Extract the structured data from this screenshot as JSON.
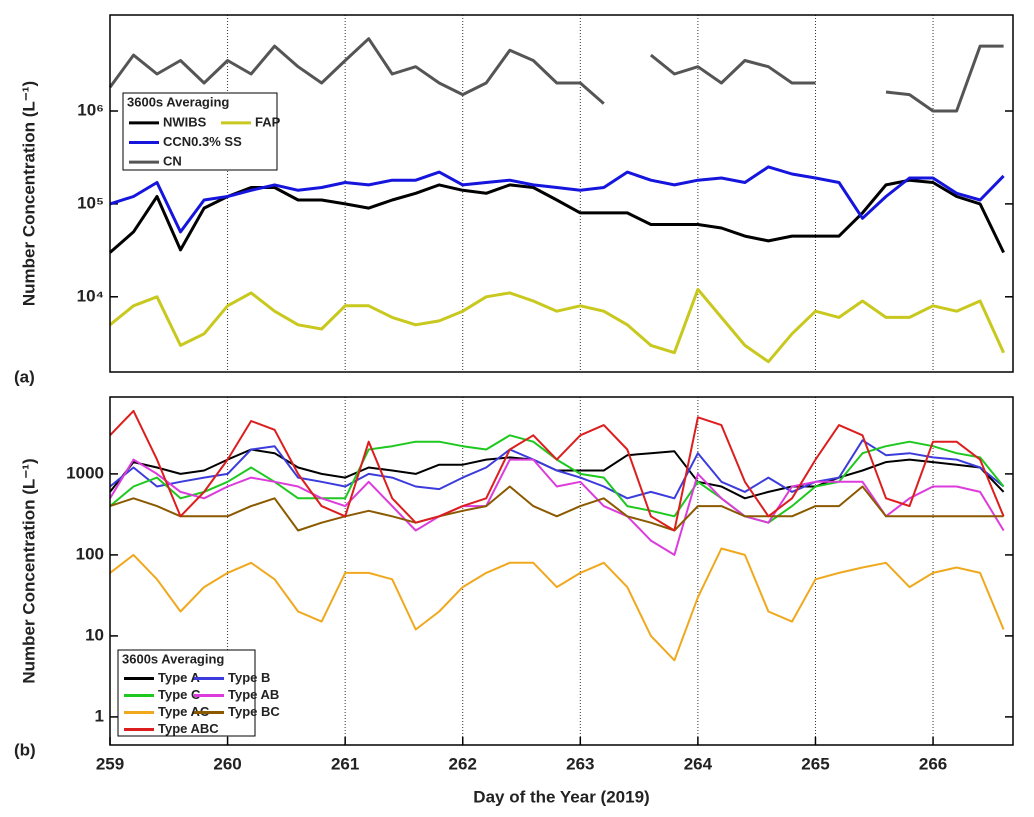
{
  "chart_data": [
    {
      "type": "line",
      "panel_label": "(a)",
      "y_label": "Number Concentration (L⁻¹)",
      "legend_title": "3600s Averaging",
      "log_scale": true,
      "xlim": [
        259,
        266.68
      ],
      "ylim": [
        1550,
        10800000
      ],
      "yticks": [
        {
          "value": 10000,
          "label": "10⁴"
        },
        {
          "value": 100000,
          "label": "10⁵"
        },
        {
          "value": 1000000,
          "label": "10⁶"
        }
      ],
      "x": [
        259.0,
        259.2,
        259.4,
        259.6,
        259.8,
        260.0,
        260.2,
        260.4,
        260.6,
        260.8,
        261.0,
        261.2,
        261.4,
        261.6,
        261.8,
        262.0,
        262.2,
        262.4,
        262.6,
        262.8,
        263.0,
        263.2,
        263.4,
        263.6,
        263.8,
        264.0,
        264.2,
        264.4,
        264.6,
        264.8,
        265.0,
        265.2,
        265.4,
        265.6,
        265.8,
        266.0,
        266.2,
        266.4,
        266.6
      ],
      "series": [
        {
          "name": "NWIBS",
          "color": "#000000",
          "values": [
            30000,
            50000,
            120000,
            32000,
            90000,
            120000,
            150000,
            150000,
            110000,
            110000,
            100000,
            90000,
            110000,
            130000,
            160000,
            140000,
            130000,
            160000,
            150000,
            110000,
            80000,
            80000,
            80000,
            60000,
            60000,
            60000,
            55000,
            45000,
            40000,
            45000,
            45000,
            45000,
            80000,
            160000,
            180000,
            170000,
            120000,
            100000,
            30000
          ]
        },
        {
          "name": "FAP",
          "color": "#c8c81e",
          "values": [
            5000,
            8000,
            10000,
            3000,
            4000,
            8000,
            11000,
            7000,
            5000,
            4500,
            8000,
            8000,
            6000,
            5000,
            5500,
            7000,
            10000,
            11000,
            9000,
            7000,
            8000,
            7000,
            5000,
            3000,
            2500,
            12000,
            6000,
            3000,
            2000,
            4000,
            7000,
            6000,
            9000,
            6000,
            6000,
            8000,
            7000,
            9000,
            2500
          ]
        },
        {
          "name": "CCN0.3% SS",
          "color": "#1515dd",
          "values": [
            100000,
            120000,
            170000,
            50000,
            110000,
            120000,
            140000,
            160000,
            140000,
            150000,
            170000,
            160000,
            180000,
            180000,
            220000,
            160000,
            170000,
            180000,
            160000,
            150000,
            140000,
            150000,
            220000,
            180000,
            160000,
            180000,
            190000,
            170000,
            250000,
            210000,
            190000,
            170000,
            70000,
            120000,
            190000,
            190000,
            130000,
            110000,
            200000
          ]
        },
        {
          "name": "CN",
          "color": "#555555",
          "values": [
            1800000,
            4000000,
            2500000,
            3500000,
            2000000,
            3500000,
            2500000,
            5000000,
            3000000,
            2000000,
            3500000,
            6000000,
            2500000,
            3000000,
            2000000,
            1500000,
            2000000,
            4500000,
            3500000,
            2000000,
            2000000,
            1200000,
            null,
            4000000,
            2500000,
            3000000,
            2000000,
            3500000,
            3000000,
            2000000,
            2000000,
            null,
            null,
            1600000,
            1500000,
            1000000,
            1000000,
            5000000,
            5000000
          ]
        }
      ]
    },
    {
      "type": "line",
      "panel_label": "(b)",
      "y_label": "Number Concentration (L⁻¹)",
      "x_label": "Day of the Year (2019)",
      "legend_title": "3600s Averaging",
      "log_scale": true,
      "xlim": [
        259,
        266.68
      ],
      "ylim": [
        0.45,
        8900
      ],
      "xticks": [
        259,
        260,
        261,
        262,
        263,
        264,
        265,
        266
      ],
      "yticks": [
        1,
        10,
        100,
        1000
      ],
      "x": [
        259.0,
        259.2,
        259.4,
        259.6,
        259.8,
        260.0,
        260.2,
        260.4,
        260.6,
        260.8,
        261.0,
        261.2,
        261.4,
        261.6,
        261.8,
        262.0,
        262.2,
        262.4,
        262.6,
        262.8,
        263.0,
        263.2,
        263.4,
        263.6,
        263.8,
        264.0,
        264.2,
        264.4,
        264.6,
        264.8,
        265.0,
        265.2,
        265.4,
        265.6,
        265.8,
        266.0,
        266.2,
        266.4,
        266.6
      ],
      "series": [
        {
          "name": "Type A",
          "color": "#000000",
          "values": [
            600,
            1400,
            1200,
            1000,
            1100,
            1500,
            2000,
            1800,
            1200,
            1000,
            900,
            1200,
            1100,
            1000,
            1300,
            1300,
            1500,
            1600,
            1500,
            1100,
            1100,
            1100,
            1700,
            1800,
            1900,
            800,
            700,
            500,
            600,
            700,
            700,
            900,
            1100,
            1400,
            1500,
            1400,
            1300,
            1200,
            600
          ]
        },
        {
          "name": "Type B",
          "color": "#3c3cdc",
          "values": [
            700,
            1200,
            700,
            800,
            900,
            1000,
            2000,
            2200,
            900,
            800,
            700,
            1000,
            900,
            700,
            650,
            900,
            1200,
            2000,
            1500,
            1100,
            900,
            700,
            500,
            600,
            500,
            1800,
            800,
            600,
            900,
            600,
            800,
            900,
            2600,
            1700,
            1800,
            1600,
            1500,
            1200,
            700
          ]
        },
        {
          "name": "Type C",
          "color": "#1ec81e",
          "values": [
            400,
            700,
            900,
            500,
            600,
            800,
            1200,
            800,
            500,
            500,
            500,
            2000,
            2200,
            2500,
            2500,
            2200,
            2000,
            3000,
            2500,
            1500,
            1000,
            900,
            400,
            350,
            300,
            800,
            500,
            300,
            250,
            400,
            700,
            800,
            1800,
            2200,
            2500,
            2200,
            1800,
            1600,
            700
          ]
        },
        {
          "name": "Type AB",
          "color": "#dc3cdc",
          "values": [
            500,
            1500,
            1000,
            600,
            500,
            700,
            900,
            800,
            700,
            500,
            400,
            800,
            400,
            200,
            300,
            400,
            400,
            1500,
            1500,
            700,
            800,
            400,
            300,
            150,
            100,
            1000,
            500,
            300,
            250,
            700,
            800,
            800,
            800,
            300,
            500,
            700,
            700,
            600,
            200
          ]
        },
        {
          "name": "Type AC",
          "color": "#f0a81e",
          "values": [
            60,
            100,
            50,
            20,
            40,
            60,
            80,
            50,
            20,
            15,
            60,
            60,
            50,
            12,
            20,
            40,
            60,
            80,
            80,
            40,
            60,
            80,
            40,
            10,
            5,
            30,
            120,
            100,
            20,
            15,
            50,
            60,
            70,
            80,
            40,
            60,
            70,
            60,
            12
          ]
        },
        {
          "name": "Type BC",
          "color": "#8b5a00",
          "values": [
            400,
            500,
            400,
            300,
            300,
            300,
            400,
            500,
            200,
            250,
            300,
            350,
            300,
            250,
            300,
            350,
            400,
            700,
            400,
            300,
            400,
            500,
            300,
            250,
            200,
            400,
            400,
            300,
            300,
            300,
            400,
            400,
            700,
            300,
            300,
            300,
            300,
            300,
            300
          ]
        },
        {
          "name": "Type ABC",
          "color": "#dc1e1e",
          "values": [
            3000,
            6000,
            1500,
            300,
            600,
            1500,
            4500,
            3500,
            1000,
            400,
            300,
            2500,
            500,
            250,
            300,
            400,
            500,
            2000,
            3000,
            1500,
            3000,
            4000,
            2000,
            300,
            200,
            5000,
            4000,
            800,
            300,
            500,
            1500,
            4000,
            3000,
            500,
            400,
            2500,
            2500,
            1500,
            300
          ]
        }
      ]
    }
  ]
}
